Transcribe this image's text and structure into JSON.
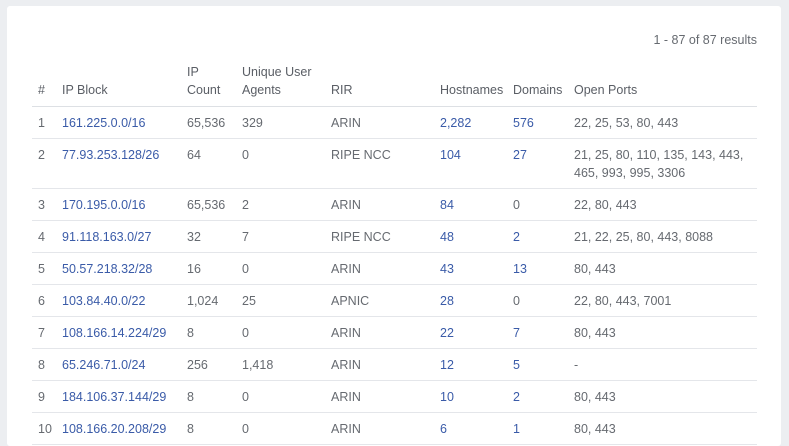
{
  "results_text": "1 - 87 of 87 results",
  "columns": {
    "num": "#",
    "ip_block": "IP Block",
    "ip_count_1": "IP",
    "ip_count_2": "Count",
    "user_agents_1": "Unique User",
    "user_agents_2": "Agents",
    "rir": "RIR",
    "hostnames": "Hostnames",
    "domains": "Domains",
    "open_ports": "Open Ports"
  },
  "rows": [
    {
      "num": "1",
      "ip_block": "161.225.0.0/16",
      "ip_count": "65,536",
      "user_agents": "329",
      "rir": "ARIN",
      "hostnames": "2,282",
      "domains": "576",
      "open_ports": "22, 25, 53, 80, 443"
    },
    {
      "num": "2",
      "ip_block": "77.93.253.128/26",
      "ip_count": "64",
      "user_agents": "0",
      "rir": "RIPE NCC",
      "hostnames": "104",
      "domains": "27",
      "open_ports": "21, 25, 80, 110, 135, 143, 443, 465, 993, 995, 3306"
    },
    {
      "num": "3",
      "ip_block": "170.195.0.0/16",
      "ip_count": "65,536",
      "user_agents": "2",
      "rir": "ARIN",
      "hostnames": "84",
      "domains": "0",
      "open_ports": "22, 80, 443"
    },
    {
      "num": "4",
      "ip_block": "91.118.163.0/27",
      "ip_count": "32",
      "user_agents": "7",
      "rir": "RIPE NCC",
      "hostnames": "48",
      "domains": "2",
      "open_ports": "21, 22, 25, 80, 443, 8088"
    },
    {
      "num": "5",
      "ip_block": "50.57.218.32/28",
      "ip_count": "16",
      "user_agents": "0",
      "rir": "ARIN",
      "hostnames": "43",
      "domains": "13",
      "open_ports": "80, 443"
    },
    {
      "num": "6",
      "ip_block": "103.84.40.0/22",
      "ip_count": "1,024",
      "user_agents": "25",
      "rir": "APNIC",
      "hostnames": "28",
      "domains": "0",
      "open_ports": "22, 80, 443, 7001"
    },
    {
      "num": "7",
      "ip_block": "108.166.14.224/29",
      "ip_count": "8",
      "user_agents": "0",
      "rir": "ARIN",
      "hostnames": "22",
      "domains": "7",
      "open_ports": "80, 443"
    },
    {
      "num": "8",
      "ip_block": "65.246.71.0/24",
      "ip_count": "256",
      "user_agents": "1,418",
      "rir": "ARIN",
      "hostnames": "12",
      "domains": "5",
      "open_ports": "-"
    },
    {
      "num": "9",
      "ip_block": "184.106.37.144/29",
      "ip_count": "8",
      "user_agents": "0",
      "rir": "ARIN",
      "hostnames": "10",
      "domains": "2",
      "open_ports": "80, 443"
    },
    {
      "num": "10",
      "ip_block": "108.166.20.208/29",
      "ip_count": "8",
      "user_agents": "0",
      "rir": "ARIN",
      "hostnames": "6",
      "domains": "1",
      "open_ports": "80, 443"
    }
  ]
}
